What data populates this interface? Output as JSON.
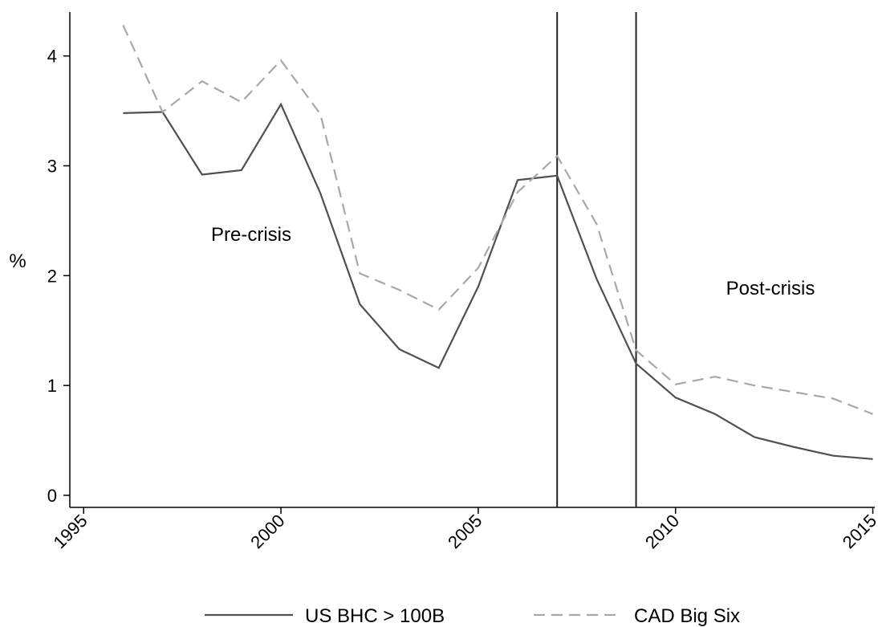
{
  "chart_data": {
    "type": "line",
    "y_label": "%",
    "x": [
      1996,
      1997,
      1998,
      1999,
      2000,
      2001,
      2002,
      2003,
      2004,
      2005,
      2006,
      2007,
      2008,
      2009,
      2010,
      2011,
      2012,
      2013,
      2014,
      2015
    ],
    "series": [
      {
        "name": "US BHC > 100B",
        "color": "#505050",
        "dash": "solid",
        "values": [
          3.48,
          3.49,
          2.92,
          2.96,
          3.56,
          2.75,
          1.74,
          1.33,
          1.16,
          1.9,
          2.87,
          2.91,
          1.97,
          1.2,
          0.89,
          0.74,
          0.53,
          0.44,
          0.36,
          0.33
        ]
      },
      {
        "name": "CAD Big Six",
        "color": "#a8a8a8",
        "dash": "dashed",
        "values": [
          4.28,
          3.49,
          3.77,
          3.58,
          3.96,
          3.47,
          2.02,
          1.87,
          1.69,
          2.07,
          2.76,
          3.09,
          2.47,
          1.32,
          1.01,
          1.08,
          1.0,
          0.94,
          0.88,
          0.74
        ]
      }
    ],
    "vlines": [
      2007,
      2009
    ],
    "annotations": [
      "Pre-crisis",
      "Post-crisis"
    ],
    "xlim": [
      1994.65,
      2015.05
    ],
    "xticks": [
      1995,
      2000,
      2005,
      2010,
      2015
    ],
    "ylim": [
      -0.11,
      4.4
    ],
    "yticks": [
      0,
      1,
      2,
      3,
      4
    ],
    "grid": false,
    "legend": "bottom"
  }
}
